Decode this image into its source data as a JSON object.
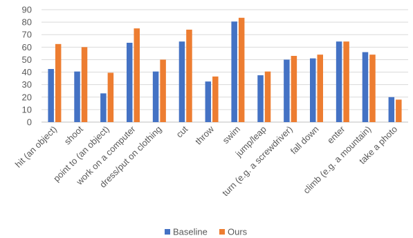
{
  "chart_data": {
    "type": "bar",
    "title": "",
    "xlabel": "",
    "ylabel": "",
    "ylim": [
      0,
      90
    ],
    "yticks": [
      0,
      10,
      20,
      30,
      40,
      50,
      60,
      70,
      80,
      90
    ],
    "grid": true,
    "legend_position": "bottom",
    "categories": [
      "hit (an object)",
      "shoot",
      "point to (an object)",
      "work on a computer",
      "dress/put on clothing",
      "cut",
      "throw",
      "swim",
      "jump/leap",
      "turn (e.g. a screwdriver)",
      "fall down",
      "enter",
      "climb (e.g. a mountain)",
      "take a photo"
    ],
    "series": [
      {
        "name": "Baseline",
        "color": "#4472c4",
        "values": [
          42.5,
          40.5,
          23,
          63.5,
          40.5,
          64.5,
          32.5,
          80.5,
          37.5,
          50,
          51,
          64.5,
          56,
          20
        ]
      },
      {
        "name": "Ours",
        "color": "#ed7d31",
        "values": [
          62.5,
          60,
          39.5,
          75,
          50,
          74,
          36.5,
          83.5,
          40.5,
          53,
          54,
          64.5,
          54,
          18
        ]
      }
    ]
  }
}
